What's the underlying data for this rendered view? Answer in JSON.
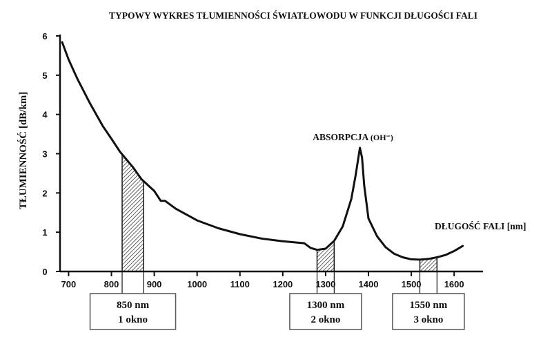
{
  "chart_data": {
    "type": "line",
    "title": "TYPOWY WYKRES TŁUMIENNOŚCI ŚWIATŁOWODU W FUNKCJI DŁUGOŚCI FALI",
    "xlabel": "DŁUGOŚĆ FALI [nm]",
    "ylabel": "TŁUMIENNOŚĆ [dB/km]",
    "xlim": [
      680,
      1640
    ],
    "ylim": [
      0,
      6
    ],
    "x_ticks": [
      "700",
      "800",
      "900",
      "1000",
      "1100",
      "1200",
      "1300",
      "1400",
      "1500",
      "1600"
    ],
    "y_ticks": [
      "0",
      "1",
      "2",
      "3",
      "4",
      "5",
      "6"
    ],
    "grid": false,
    "series": [
      {
        "x": [
          685,
          700,
          720,
          750,
          780,
          800,
          820,
          850,
          870,
          900,
          915,
          925,
          950,
          1000,
          1050,
          1100,
          1150,
          1200,
          1250,
          1265,
          1280,
          1300,
          1320,
          1340,
          1360,
          1370,
          1380,
          1385,
          1390,
          1400,
          1420,
          1440,
          1460,
          1480,
          1500,
          1520,
          1540,
          1560,
          1580,
          1600,
          1620
        ],
        "values": [
          5.84,
          5.4,
          4.92,
          4.28,
          3.7,
          3.38,
          3.05,
          2.66,
          2.35,
          2.05,
          1.8,
          1.8,
          1.6,
          1.3,
          1.1,
          0.95,
          0.84,
          0.77,
          0.72,
          0.6,
          0.55,
          0.58,
          0.78,
          1.15,
          1.85,
          2.45,
          3.15,
          2.9,
          2.2,
          1.35,
          0.9,
          0.62,
          0.45,
          0.36,
          0.31,
          0.3,
          0.32,
          0.36,
          0.42,
          0.52,
          0.65
        ]
      }
    ],
    "windows": [
      {
        "x_start": 825,
        "x_end": 875,
        "box_lines": [
          "850 nm",
          "1 okno"
        ]
      },
      {
        "x_start": 1280,
        "x_end": 1320,
        "box_lines": [
          "1300 nm",
          "2 okno"
        ]
      },
      {
        "x_start": 1520,
        "x_end": 1560,
        "box_lines": [
          "1550 nm",
          "3 okno"
        ]
      }
    ],
    "annotations": [
      {
        "text": "ABSORPCJA",
        "suffix": "(OH⁻)",
        "x": 1380
      }
    ]
  }
}
